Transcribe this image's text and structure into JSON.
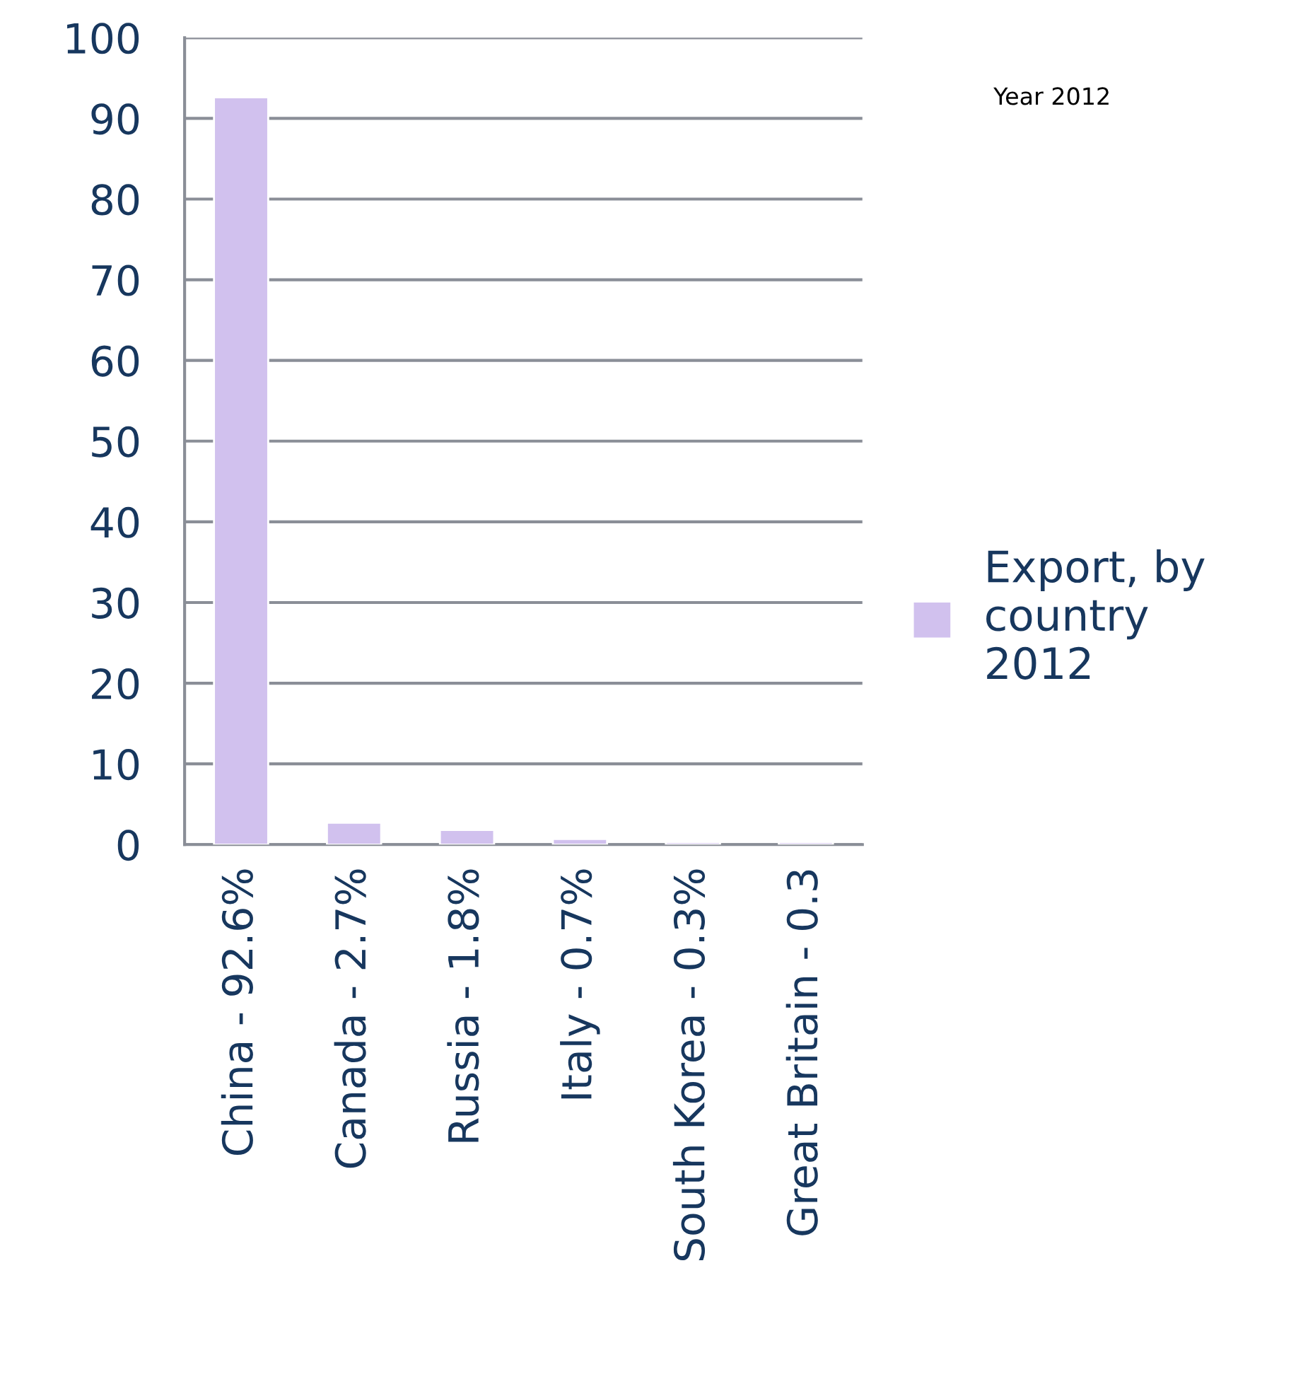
{
  "chart_data": {
    "type": "bar",
    "title": "Year 2012",
    "categories": [
      "China - 92.6%",
      "Canada - 2.7%",
      "Russia - 1.8%",
      "Italy - 0.7%",
      "South Korea - 0.3%",
      "Great Britain - 0.3"
    ],
    "series": [
      {
        "name": "Export, by\ncountry\n2012",
        "color": "#d1c1ee",
        "values": [
          92.6,
          2.7,
          1.8,
          0.7,
          0.3,
          0.3
        ]
      }
    ],
    "ylim": [
      0,
      100
    ],
    "yticks": [
      0,
      10,
      20,
      30,
      40,
      50,
      60,
      70,
      80,
      90,
      100
    ],
    "grid": "y",
    "legend": "right"
  }
}
